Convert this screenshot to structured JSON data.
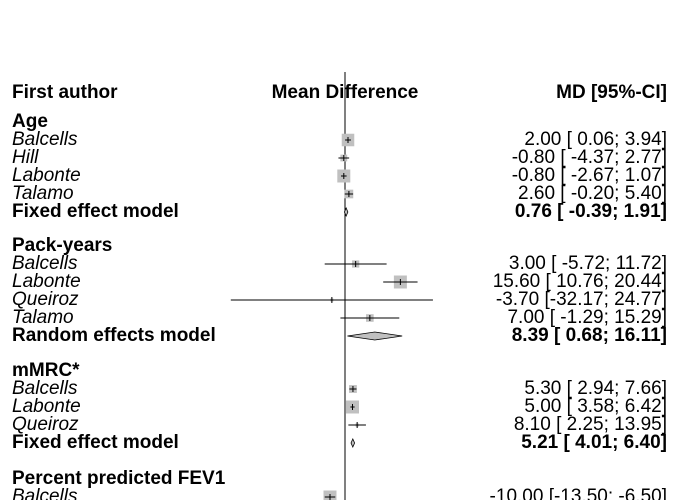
{
  "chart_data": {
    "type": "forest",
    "columns": {
      "author": "First author",
      "plot": "Mean Difference",
      "ci": "MD [95%-CI]"
    },
    "null_value": 0,
    "groups": [
      {
        "name": "Age",
        "studies": [
          {
            "author": "Balcells",
            "md": 2.0,
            "lo": 0.06,
            "hi": 3.94,
            "ci_text": "2.00 [ 0.06;  3.94]"
          },
          {
            "author": "Hill",
            "md": -0.8,
            "lo": -4.37,
            "hi": 2.77,
            "ci_text": "-0.80 [ -4.37;  2.77]"
          },
          {
            "author": "Labonte",
            "md": -0.8,
            "lo": -2.67,
            "hi": 1.07,
            "ci_text": "-0.80 [ -2.67;  1.07]"
          },
          {
            "author": "Talamo",
            "md": 2.6,
            "lo": -0.2,
            "hi": 5.4,
            "ci_text": "2.60 [ -0.20;  5.40]"
          }
        ],
        "summary": {
          "label": "Fixed effect model",
          "md": 0.76,
          "lo": -0.39,
          "hi": 1.91,
          "ci_text": "0.76 [ -0.39;  1.91]"
        }
      },
      {
        "name": "Pack-years",
        "studies": [
          {
            "author": "Balcells",
            "md": 3.0,
            "lo": -5.72,
            "hi": 11.72,
            "ci_text": "3.00 [ -5.72;  11.72]"
          },
          {
            "author": "Labonte",
            "md": 15.6,
            "lo": 10.76,
            "hi": 20.44,
            "ci_text": "15.60 [ 10.76;  20.44]"
          },
          {
            "author": "Queiroz",
            "md": -3.7,
            "lo": -32.17,
            "hi": 24.77,
            "ci_text": "-3.70 [-32.17;  24.77]"
          },
          {
            "author": "Talamo",
            "md": 7.0,
            "lo": -1.29,
            "hi": 15.29,
            "ci_text": "7.00 [ -1.29;  15.29]"
          }
        ],
        "summary": {
          "label": "Random effects model",
          "md": 8.39,
          "lo": 0.68,
          "hi": 16.11,
          "ci_text": "8.39 [  0.68;  16.11]"
        }
      },
      {
        "name": "mMRC*",
        "studies": [
          {
            "author": "Balcells",
            "md": 5.3,
            "lo": 2.94,
            "hi": 7.66,
            "ci_text": "5.30 [  2.94;  7.66]"
          },
          {
            "author": "Labonte",
            "md": 5.0,
            "lo": 3.58,
            "hi": 6.42,
            "ci_text": "5.00 [  3.58;  6.42]"
          },
          {
            "author": "Queiroz",
            "md": 8.1,
            "lo": 2.25,
            "hi": 13.95,
            "ci_text": "8.10 [  2.25;  13.95]"
          }
        ],
        "summary": {
          "label": "Fixed effect model",
          "md": 5.21,
          "lo": 4.01,
          "hi": 6.4,
          "ci_text": "5.21 [  4.01;  6.40]"
        }
      },
      {
        "name": "Percent predicted FEV1",
        "studies": [
          {
            "author": "Balcells",
            "md": -10.0,
            "lo": -13.5,
            "hi": -6.5,
            "ci_text": "-10.00 [-13.50;  -6.50]"
          }
        ],
        "summary": null
      }
    ]
  }
}
